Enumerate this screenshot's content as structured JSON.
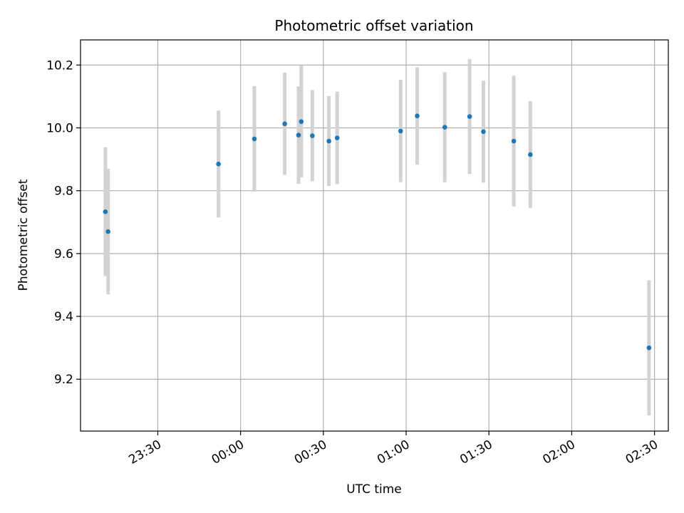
{
  "chart_data": {
    "type": "scatter",
    "title": "Photometric offset variation",
    "xlabel": "UTC time",
    "ylabel": "Photometric offset",
    "x_unit": "HH:MM",
    "xlim": [
      "23:02",
      "02:35"
    ],
    "ylim": [
      9.035,
      10.28
    ],
    "x_ticks": [
      "23:30",
      "00:00",
      "00:30",
      "01:00",
      "01:30",
      "02:00",
      "02:30"
    ],
    "y_ticks": [
      9.2,
      9.4,
      9.6,
      9.8,
      10.0,
      10.2
    ],
    "grid": true,
    "colors": {
      "point": "#1f77b4",
      "errorbar": "#d3d3d3",
      "grid": "#b0b0b0"
    },
    "series": [
      {
        "points": [
          {
            "x": "23:11",
            "y": 9.733,
            "yerr": 0.205
          },
          {
            "x": "23:12",
            "y": 9.67,
            "yerr": 0.2
          },
          {
            "x": "23:52",
            "y": 9.885,
            "yerr": 0.17
          },
          {
            "x": "00:05",
            "y": 9.965,
            "yerr": 0.168
          },
          {
            "x": "00:16",
            "y": 10.013,
            "yerr": 0.163
          },
          {
            "x": "00:21",
            "y": 9.977,
            "yerr": 0.155
          },
          {
            "x": "00:22",
            "y": 10.02,
            "yerr": 0.178
          },
          {
            "x": "00:26",
            "y": 9.975,
            "yerr": 0.145
          },
          {
            "x": "00:32",
            "y": 9.958,
            "yerr": 0.143
          },
          {
            "x": "00:35",
            "y": 9.968,
            "yerr": 0.147
          },
          {
            "x": "00:58",
            "y": 9.99,
            "yerr": 0.163
          },
          {
            "x": "01:04",
            "y": 10.038,
            "yerr": 0.155
          },
          {
            "x": "01:14",
            "y": 10.002,
            "yerr": 0.175
          },
          {
            "x": "01:23",
            "y": 10.036,
            "yerr": 0.183
          },
          {
            "x": "01:28",
            "y": 9.988,
            "yerr": 0.162
          },
          {
            "x": "01:39",
            "y": 9.958,
            "yerr": 0.208
          },
          {
            "x": "01:45",
            "y": 9.915,
            "yerr": 0.17
          },
          {
            "x": "02:28",
            "y": 9.3,
            "yerr": 0.215
          }
        ]
      }
    ]
  }
}
